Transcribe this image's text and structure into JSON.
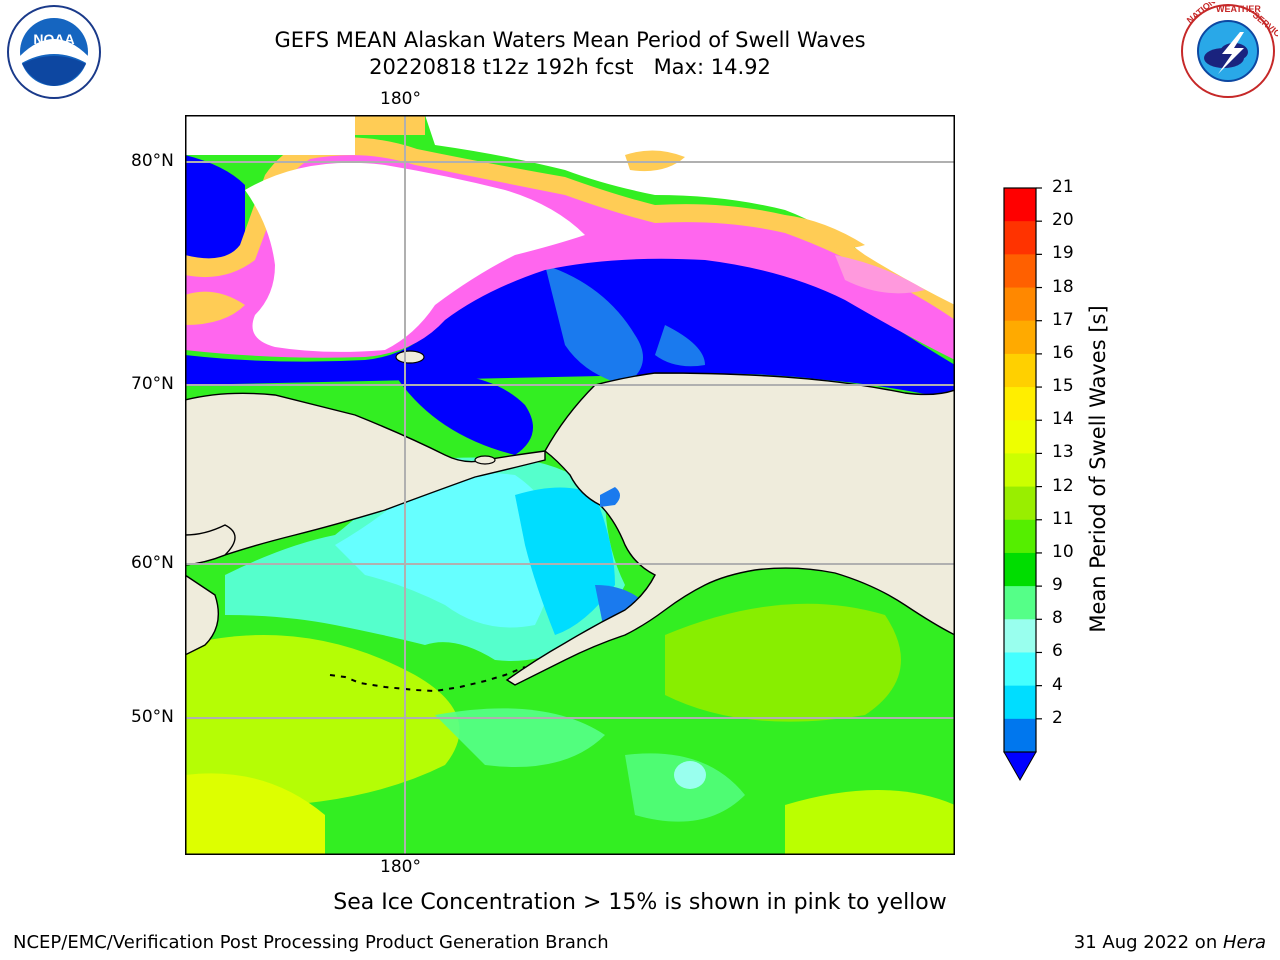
{
  "title": {
    "line1": "GEFS MEAN Alaskan Waters Mean Period of Swell Waves",
    "line2": "20220818 t12z 192h fcst   Max: 14.92"
  },
  "logos": {
    "left": {
      "icon": "noaa-logo",
      "text": "NOAA"
    },
    "right": {
      "icon": "nws-logo",
      "text": "NATIONAL WEATHER SERVICE"
    }
  },
  "map": {
    "lon_label_top": "180°",
    "lon_label_bottom": "180°",
    "lat_labels": [
      "80°N",
      "70°N",
      "60°N",
      "50°N"
    ],
    "land_color": "#efecdc",
    "grid_color": "#b0b0b0"
  },
  "colorbar": {
    "label": "Mean Period of Swell Waves [s]",
    "ticks": [
      "21",
      "20",
      "19",
      "18",
      "17",
      "16",
      "15",
      "14",
      "13",
      "12",
      "11",
      "10",
      "9",
      "8",
      "6",
      "4",
      "2"
    ],
    "colors": [
      "#ff0000",
      "#ff3300",
      "#ff6000",
      "#ff8800",
      "#ffaa00",
      "#ffd000",
      "#ffee00",
      "#eeff00",
      "#ccff00",
      "#99ee00",
      "#55ee00",
      "#00dd00",
      "#55ff88",
      "#99ffee",
      "#44ffff",
      "#00ddff",
      "#0077ee"
    ],
    "extend_color": "#0000ff"
  },
  "note": "Sea Ice Concentration > 15% is shown in pink to yellow",
  "footer": {
    "left": "NCEP/EMC/Verification Post Processing Product Generation Branch",
    "right_prefix": "31 Aug 2022 on ",
    "right_host": "Hera"
  }
}
